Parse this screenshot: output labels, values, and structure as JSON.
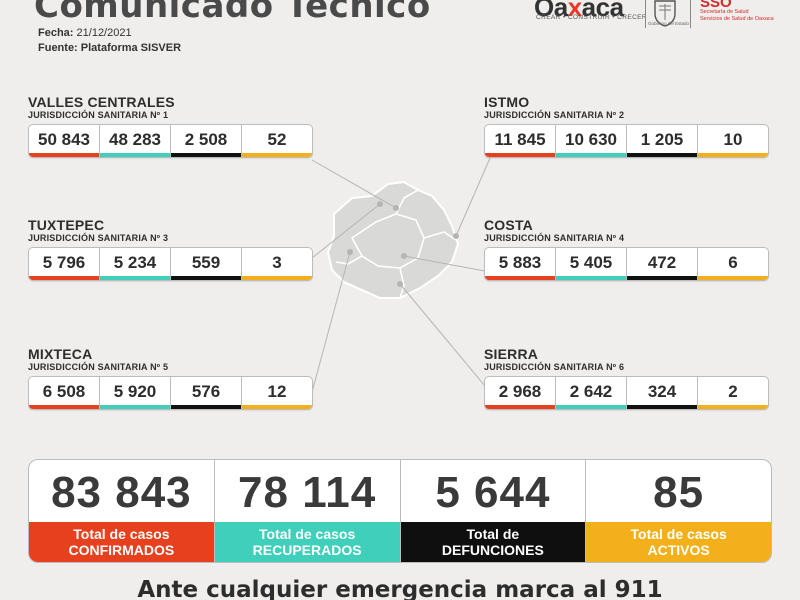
{
  "header": {
    "title": "Comunicado Técnico",
    "date_label": "Fecha:",
    "date_value": "21/12/2021",
    "source_label": "Fuente: Plataforma SISVER"
  },
  "logos": {
    "oaxaca_prefix": "Oa",
    "oaxaca_x": "x",
    "oaxaca_suffix": "aca",
    "oaxaca_tagline": "CREAR • CONSTRUIR • CRECER",
    "seal_caption": "Gobierno del Estado",
    "sso_word": "SSO",
    "sso_sub": "Secretaría de Salud\nServicios de Salud de Oaxaca"
  },
  "regions": [
    {
      "name": "VALLES CENTRALES",
      "jurisdiction": "JURISDICCIÓN SANITARIA Nº 1",
      "values": [
        "50 843",
        "48 283",
        "2 508",
        "52"
      ]
    },
    {
      "name": "ISTMO",
      "jurisdiction": "JURISDICCIÓN SANITARIA Nº 2",
      "values": [
        "11 845",
        "10 630",
        "1 205",
        "10"
      ]
    },
    {
      "name": "TUXTEPEC",
      "jurisdiction": "JURISDICCIÓN SANITARIA Nº 3",
      "values": [
        "5 796",
        "5 234",
        "559",
        "3"
      ]
    },
    {
      "name": "COSTA",
      "jurisdiction": "JURISDICCIÓN SANITARIA Nº 4",
      "values": [
        "5 883",
        "5 405",
        "472",
        "6"
      ]
    },
    {
      "name": "MIXTECA",
      "jurisdiction": "JURISDICCIÓN SANITARIA Nº 5",
      "values": [
        "6 508",
        "5 920",
        "576",
        "12"
      ]
    },
    {
      "name": "SIERRA",
      "jurisdiction": "JURISDICCIÓN SANITARIA Nº 6",
      "values": [
        "2 968",
        "2 642",
        "324",
        "2"
      ]
    }
  ],
  "totals": [
    {
      "value": "83 843",
      "line1": "Total de casos",
      "line2": "CONFIRMADOS"
    },
    {
      "value": "78 114",
      "line1": "Total de casos",
      "line2": "RECUPERADOS"
    },
    {
      "value": "5 644",
      "line1": "Total de",
      "line2": "DEFUNCIONES"
    },
    {
      "value": "85",
      "line1": "Total de casos",
      "line2": "ACTIVOS"
    }
  ],
  "colors": {
    "confirmados": "#e6401f",
    "recuperados": "#3fcfba",
    "defunciones": "#0f0f0f",
    "activos": "#f3b01a"
  },
  "footer": {
    "text": "Ante cualquier emergencia marca al 911"
  }
}
